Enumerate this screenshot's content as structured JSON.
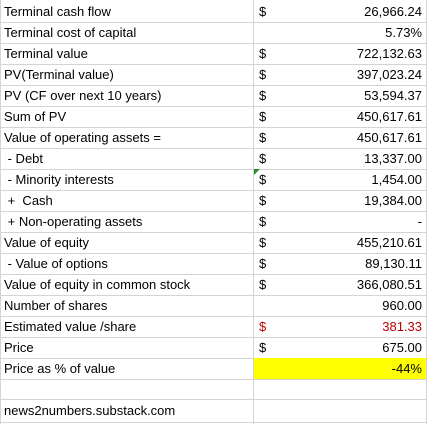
{
  "rows": [
    {
      "label": "Terminal cash flow",
      "sym": "$",
      "value": "26,966.24"
    },
    {
      "label": "Terminal cost of capital",
      "sym": "",
      "value": "5.73%"
    },
    {
      "label": "Terminal value",
      "sym": "$",
      "value": "722,132.63"
    },
    {
      "label": "PV(Terminal value)",
      "sym": "$",
      "value": "397,023.24"
    },
    {
      "label": "PV (CF over next 10 years)",
      "sym": "$",
      "value": "53,594.37"
    },
    {
      "label": "Sum of PV",
      "sym": "$",
      "value": "450,617.61"
    },
    {
      "label": "Value of operating assets =",
      "sym": "$",
      "value": "450,617.61"
    },
    {
      "label": " - Debt",
      "sym": "$",
      "value": "13,337.00"
    },
    {
      "label": " - Minority interests",
      "sym": "$",
      "value": "1,454.00"
    },
    {
      "label": " +  Cash",
      "sym": "$",
      "value": "19,384.00"
    },
    {
      "label": " + Non-operating assets",
      "sym": "$",
      "value": "-"
    },
    {
      "label": "Value of equity",
      "sym": "$",
      "value": "455,210.61"
    },
    {
      "label": " - Value of options",
      "sym": "$",
      "value": "89,130.11"
    },
    {
      "label": "Value of equity in common stock",
      "sym": "$",
      "value": "366,080.51"
    },
    {
      "label": "Number of shares",
      "sym": "",
      "value": "960.00"
    },
    {
      "label": "Estimated value /share",
      "sym": "$",
      "value": "381.33"
    },
    {
      "label": "Price",
      "sym": "$",
      "value": "675.00"
    },
    {
      "label": "Price as % of value",
      "sym": "",
      "value": "-44%"
    }
  ],
  "footer": "news2numbers.substack.com",
  "colors": {
    "highlight": "#ffff00",
    "red_text": "#c00000",
    "grid": "#d4d4d4"
  }
}
